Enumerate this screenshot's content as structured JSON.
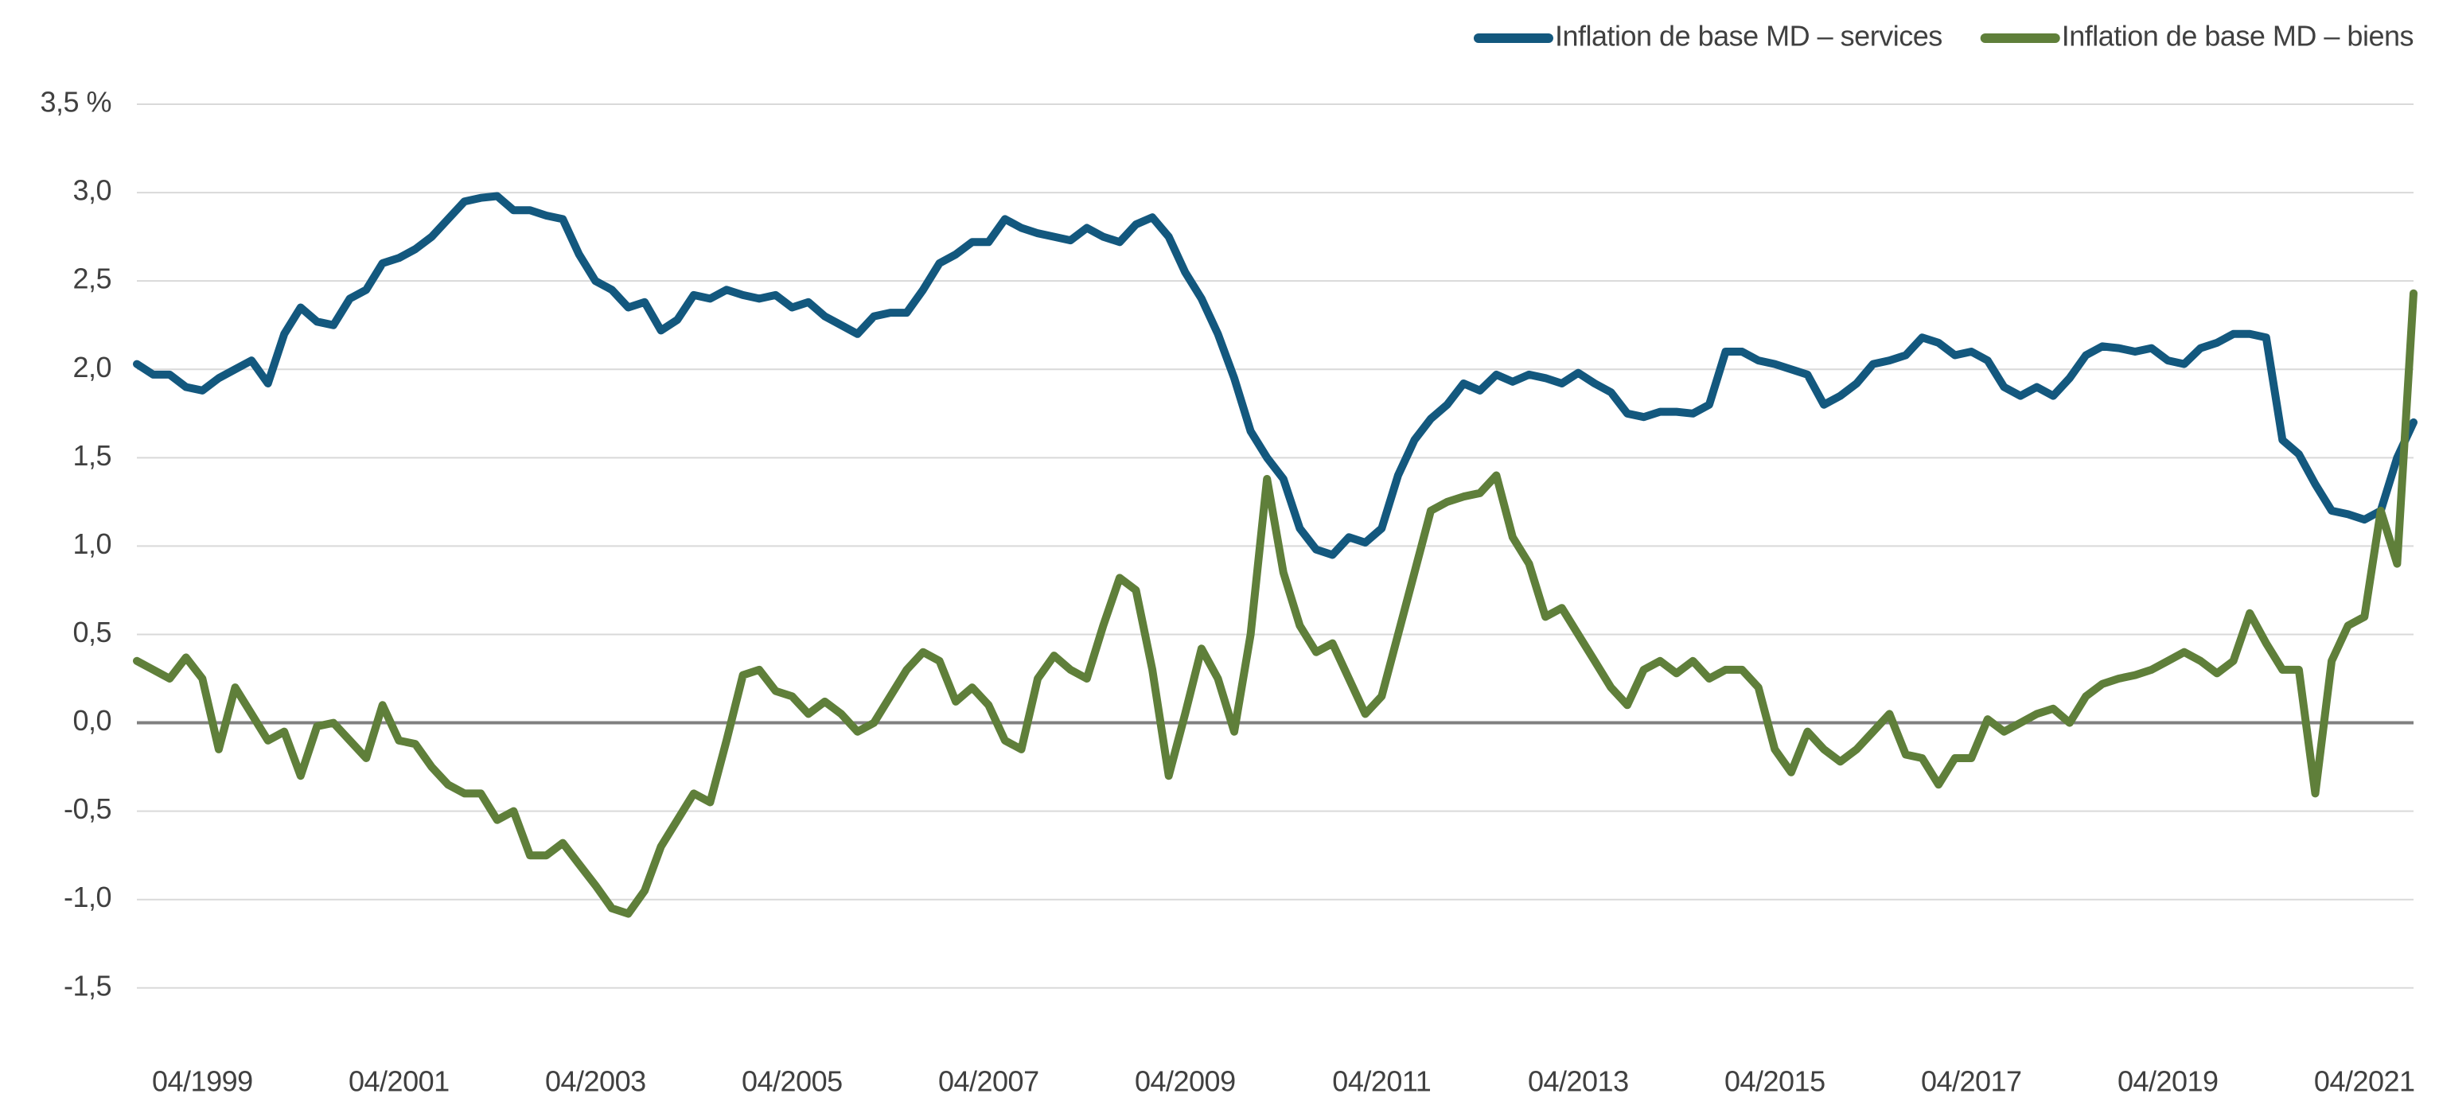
{
  "chart_data": {
    "type": "line",
    "categories": [
      null,
      null,
      null,
      null,
      "04/1999",
      null,
      null,
      null,
      null,
      null,
      null,
      null,
      null,
      null,
      null,
      null,
      "04/2001",
      null,
      null,
      null,
      null,
      null,
      null,
      null,
      null,
      null,
      null,
      null,
      "04/2003",
      null,
      null,
      null,
      null,
      null,
      null,
      null,
      null,
      null,
      null,
      null,
      "04/2005",
      null,
      null,
      null,
      null,
      null,
      null,
      null,
      null,
      null,
      null,
      null,
      "04/2007",
      null,
      null,
      null,
      null,
      null,
      null,
      null,
      null,
      null,
      null,
      null,
      "04/2009",
      null,
      null,
      null,
      null,
      null,
      null,
      null,
      null,
      null,
      null,
      null,
      "04/2011",
      null,
      null,
      null,
      null,
      null,
      null,
      null,
      null,
      null,
      null,
      null,
      "04/2013",
      null,
      null,
      null,
      null,
      null,
      null,
      null,
      null,
      null,
      null,
      null,
      "04/2015",
      null,
      null,
      null,
      null,
      null,
      null,
      null,
      null,
      null,
      null,
      null,
      "04/2017",
      null,
      null,
      null,
      null,
      null,
      null,
      null,
      null,
      null,
      null,
      null,
      "04/2019",
      null,
      null,
      null,
      null,
      null,
      null,
      null,
      null,
      null,
      null,
      null,
      "04/2021",
      null,
      null,
      null
    ],
    "series": [
      {
        "name": "Inflation de base MD – services",
        "color": "#13587e",
        "values": [
          2.03,
          1.97,
          1.97,
          1.9,
          1.88,
          1.95,
          2.0,
          2.05,
          1.92,
          2.2,
          2.35,
          2.27,
          2.25,
          2.4,
          2.45,
          2.6,
          2.63,
          2.68,
          2.75,
          2.85,
          2.95,
          2.97,
          2.98,
          2.9,
          2.9,
          2.87,
          2.85,
          2.65,
          2.5,
          2.45,
          2.35,
          2.38,
          2.22,
          2.28,
          2.42,
          2.4,
          2.45,
          2.42,
          2.4,
          2.42,
          2.35,
          2.38,
          2.3,
          2.25,
          2.2,
          2.3,
          2.32,
          2.32,
          2.45,
          2.6,
          2.65,
          2.72,
          2.72,
          2.85,
          2.8,
          2.77,
          2.75,
          2.73,
          2.8,
          2.75,
          2.72,
          2.82,
          2.86,
          2.75,
          2.55,
          2.4,
          2.2,
          1.95,
          1.65,
          1.5,
          1.38,
          1.1,
          0.98,
          0.95,
          1.05,
          1.02,
          1.1,
          1.4,
          1.6,
          1.72,
          1.8,
          1.92,
          1.88,
          1.97,
          1.93,
          1.97,
          1.95,
          1.92,
          1.98,
          1.92,
          1.87,
          1.75,
          1.73,
          1.76,
          1.76,
          1.75,
          1.8,
          2.1,
          2.1,
          2.05,
          2.03,
          2.0,
          1.97,
          1.8,
          1.85,
          1.92,
          2.03,
          2.05,
          2.08,
          2.18,
          2.15,
          2.08,
          2.1,
          2.05,
          1.9,
          1.85,
          1.9,
          1.85,
          1.95,
          2.08,
          2.13,
          2.12,
          2.1,
          2.12,
          2.05,
          2.03,
          2.12,
          2.15,
          2.2,
          2.2,
          2.18,
          1.6,
          1.52,
          1.35,
          1.2,
          1.18,
          1.15,
          1.2,
          1.5,
          1.7
        ]
      },
      {
        "name": "Inflation de base MD – biens",
        "color": "#5f7f3a",
        "values": [
          0.35,
          0.3,
          0.25,
          0.37,
          0.25,
          -0.15,
          0.2,
          0.05,
          -0.1,
          -0.05,
          -0.3,
          -0.02,
          0.0,
          -0.1,
          -0.2,
          0.1,
          -0.1,
          -0.12,
          -0.25,
          -0.35,
          -0.4,
          -0.4,
          -0.55,
          -0.5,
          -0.75,
          -0.75,
          -0.68,
          -0.8,
          -0.92,
          -1.05,
          -1.08,
          -0.95,
          -0.7,
          -0.55,
          -0.4,
          -0.45,
          -0.1,
          0.27,
          0.3,
          0.18,
          0.15,
          0.05,
          0.12,
          0.05,
          -0.05,
          0.0,
          0.15,
          0.3,
          0.4,
          0.35,
          0.12,
          0.2,
          0.1,
          -0.1,
          -0.15,
          0.25,
          0.38,
          0.3,
          0.25,
          0.55,
          0.82,
          0.75,
          0.3,
          -0.3,
          0.05,
          0.42,
          0.25,
          -0.05,
          0.5,
          1.38,
          0.85,
          0.55,
          0.4,
          0.45,
          0.25,
          0.05,
          0.15,
          0.5,
          0.85,
          1.2,
          1.25,
          1.28,
          1.3,
          1.4,
          1.05,
          0.9,
          0.6,
          0.65,
          0.5,
          0.35,
          0.2,
          0.1,
          0.3,
          0.35,
          0.28,
          0.35,
          0.25,
          0.3,
          0.3,
          0.2,
          -0.15,
          -0.28,
          -0.05,
          -0.15,
          -0.22,
          -0.15,
          -0.05,
          0.05,
          -0.18,
          -0.2,
          -0.35,
          -0.2,
          -0.2,
          0.02,
          -0.05,
          0.0,
          0.05,
          0.08,
          0.0,
          0.15,
          0.22,
          0.25,
          0.27,
          0.3,
          0.35,
          0.4,
          0.35,
          0.28,
          0.35,
          0.62,
          0.45,
          0.3,
          0.3,
          -0.4,
          0.35,
          0.55,
          0.6,
          1.2,
          0.9,
          2.43
        ]
      }
    ],
    "ylim": [
      -1.78,
      3.5
    ],
    "yticks": [
      {
        "value": -1.5,
        "label": "-1,5"
      },
      {
        "value": -1,
        "label": "-1,0"
      },
      {
        "value": -0.5,
        "label": "-0,5"
      },
      {
        "value": 0,
        "label": "0,0"
      },
      {
        "value": 0.5,
        "label": "0,5"
      },
      {
        "value": 1,
        "label": "1,0"
      },
      {
        "value": 1.5,
        "label": "1,5"
      },
      {
        "value": 2,
        "label": "2,0"
      },
      {
        "value": 2.5,
        "label": "2,5"
      },
      {
        "value": 3,
        "label": "3,0"
      },
      {
        "value": 3.5,
        "label": "3,5 %"
      }
    ],
    "grid": true,
    "legend": "top-right"
  }
}
